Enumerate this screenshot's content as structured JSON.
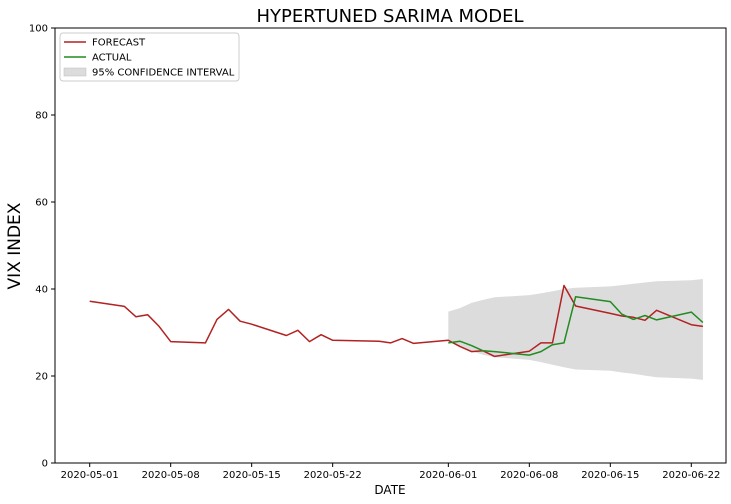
{
  "chart_data": {
    "type": "line",
    "title": "HYPERTUNED SARIMA MODEL",
    "xlabel": "DATE",
    "ylabel": "VIX INDEX",
    "ylim": [
      0,
      100
    ],
    "xlim": [
      "2020-04-28",
      "2020-06-25"
    ],
    "grid": false,
    "legend_position": "top-left",
    "x_ticks": [
      "2020-05-01",
      "2020-05-08",
      "2020-05-15",
      "2020-05-22",
      "2020-06-01",
      "2020-06-08",
      "2020-06-15",
      "2020-06-22"
    ],
    "y_ticks": [
      "0",
      "20",
      "40",
      "60",
      "80",
      "100"
    ],
    "legend": [
      {
        "label": "FORECAST",
        "kind": "line",
        "color": "#b22222"
      },
      {
        "label": "ACTUAL",
        "kind": "line",
        "color": "#228b22"
      },
      {
        "label": "95% CONFIDENCE INTERVAL",
        "kind": "band",
        "color": "#dcdcdc"
      }
    ],
    "series": [
      {
        "name": "FORECAST",
        "color": "#b22222",
        "x": [
          "2020-05-01",
          "2020-05-04",
          "2020-05-05",
          "2020-05-06",
          "2020-05-07",
          "2020-05-08",
          "2020-05-11",
          "2020-05-12",
          "2020-05-13",
          "2020-05-14",
          "2020-05-15",
          "2020-05-18",
          "2020-05-19",
          "2020-05-20",
          "2020-05-21",
          "2020-05-22",
          "2020-05-26",
          "2020-05-27",
          "2020-05-28",
          "2020-05-29",
          "2020-06-01",
          "2020-06-02",
          "2020-06-03",
          "2020-06-04",
          "2020-06-05",
          "2020-06-08",
          "2020-06-09",
          "2020-06-10",
          "2020-06-11",
          "2020-06-12",
          "2020-06-15",
          "2020-06-16",
          "2020-06-17",
          "2020-06-18",
          "2020-06-19",
          "2020-06-22",
          "2020-06-23"
        ],
        "values": [
          37.2,
          36.0,
          33.6,
          34.1,
          31.4,
          27.9,
          27.6,
          33.0,
          35.3,
          32.6,
          31.9,
          29.3,
          30.5,
          27.9,
          29.5,
          28.2,
          28.0,
          27.6,
          28.6,
          27.5,
          28.2,
          26.8,
          25.6,
          25.8,
          24.5,
          25.7,
          27.6,
          27.6,
          40.8,
          36.1,
          34.4,
          33.8,
          33.5,
          32.8,
          35.1,
          31.8,
          31.4
        ]
      },
      {
        "name": "ACTUAL",
        "color": "#228b22",
        "x": [
          "2020-06-01",
          "2020-06-02",
          "2020-06-03",
          "2020-06-04",
          "2020-06-05",
          "2020-06-08",
          "2020-06-09",
          "2020-06-10",
          "2020-06-11",
          "2020-06-12",
          "2020-06-15",
          "2020-06-16",
          "2020-06-17",
          "2020-06-18",
          "2020-06-19",
          "2020-06-22",
          "2020-06-23"
        ],
        "values": [
          27.6,
          28.0,
          27.0,
          25.8,
          25.6,
          24.8,
          25.6,
          27.2,
          27.6,
          38.2,
          37.1,
          34.2,
          33.0,
          33.9,
          32.9,
          34.7,
          32.3
        ]
      }
    ],
    "confidence_interval": {
      "name": "95% CONFIDENCE INTERVAL",
      "color": "#dcdcdc",
      "x": [
        "2020-06-01",
        "2020-06-02",
        "2020-06-03",
        "2020-06-04",
        "2020-06-05",
        "2020-06-08",
        "2020-06-09",
        "2020-06-10",
        "2020-06-11",
        "2020-06-12",
        "2020-06-15",
        "2020-06-16",
        "2020-06-17",
        "2020-06-18",
        "2020-06-19",
        "2020-06-22",
        "2020-06-23"
      ],
      "upper": [
        34.8,
        35.6,
        36.8,
        37.5,
        38.1,
        38.6,
        39.0,
        39.5,
        40.0,
        40.3,
        40.6,
        40.9,
        41.2,
        41.5,
        41.8,
        42.0,
        42.3
      ],
      "lower": [
        28.3,
        27.0,
        25.7,
        24.9,
        24.3,
        23.7,
        23.2,
        22.6,
        22.0,
        21.5,
        21.2,
        20.8,
        20.5,
        20.1,
        19.7,
        19.4,
        19.1
      ]
    }
  }
}
